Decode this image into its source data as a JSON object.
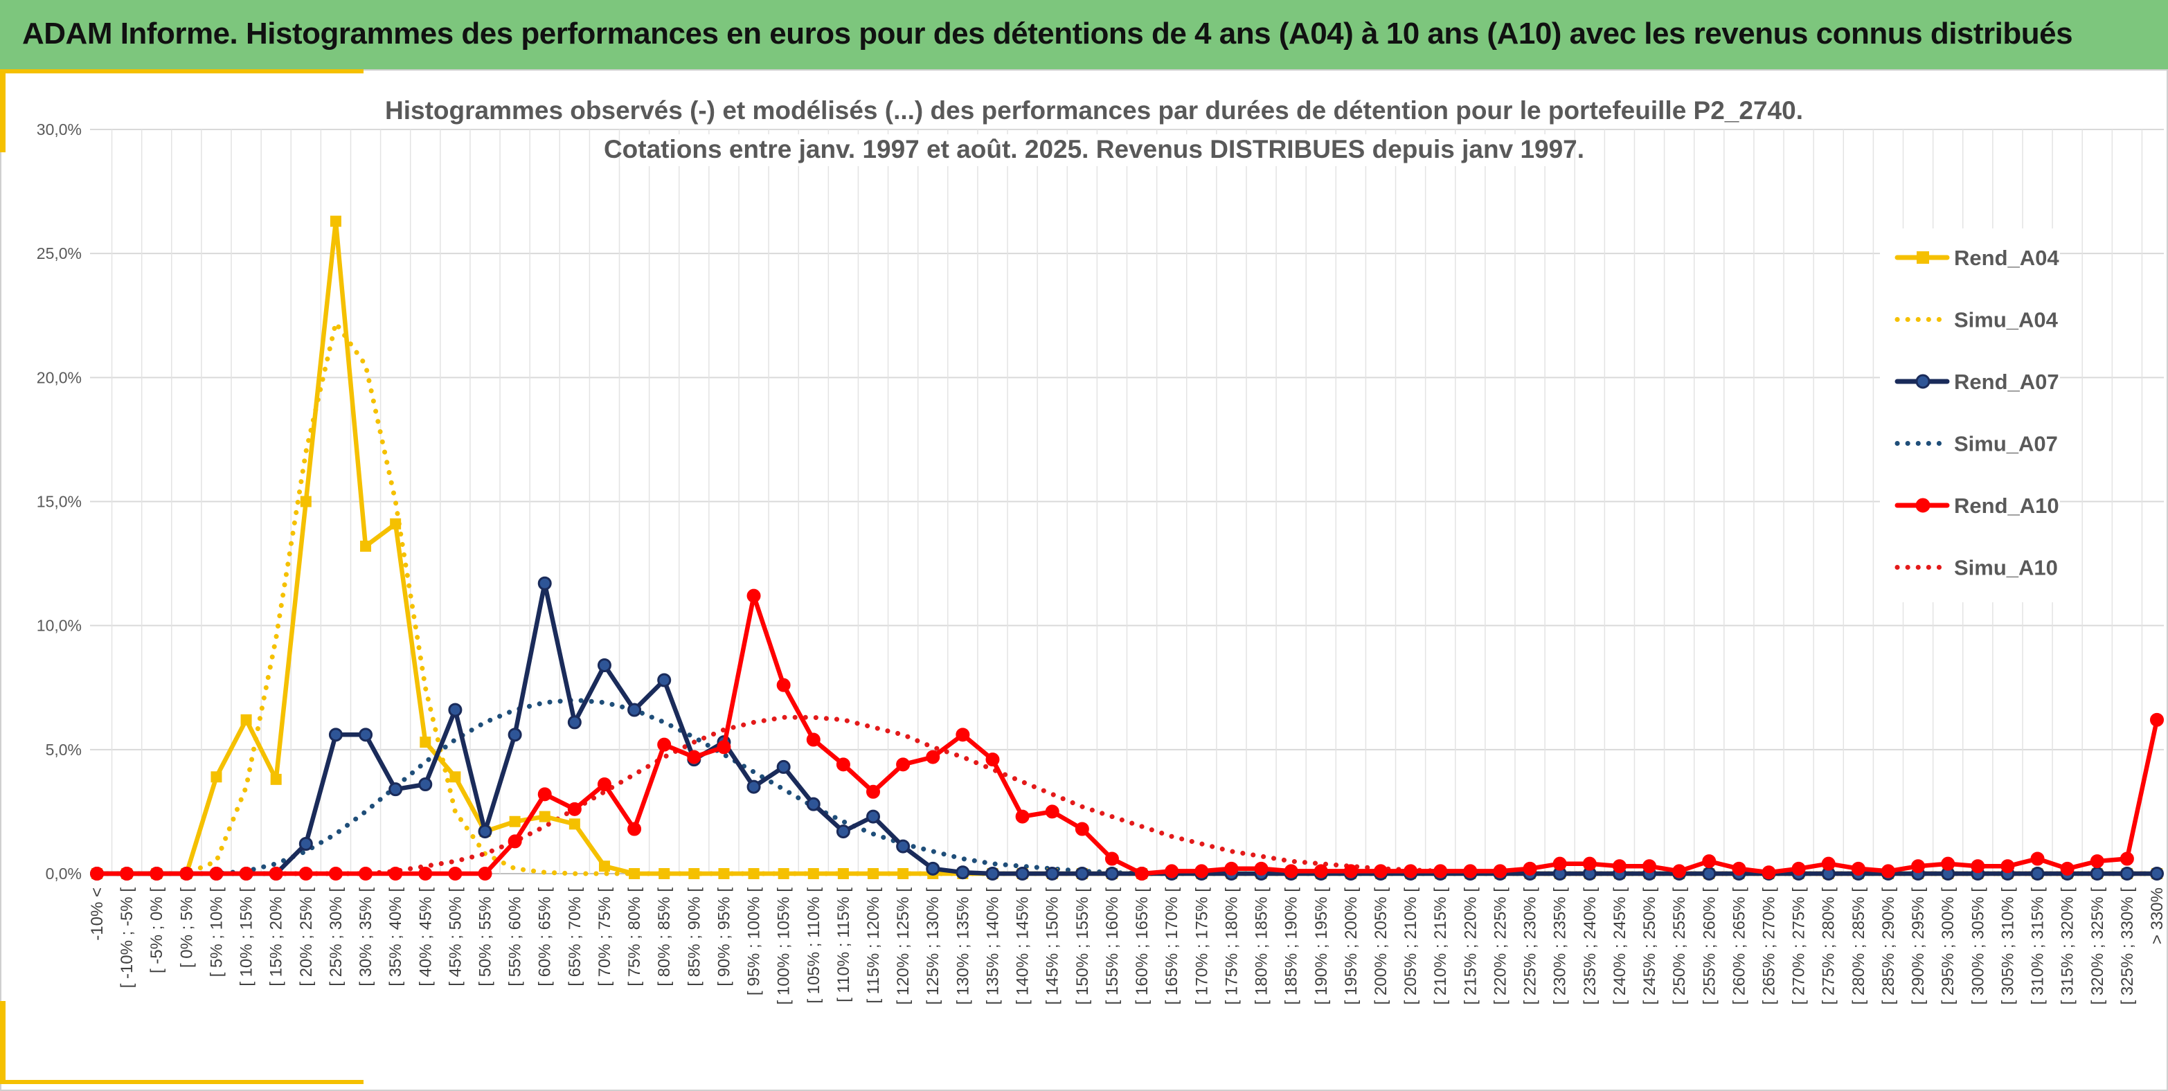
{
  "header": {
    "title": "ADAM Informe. Histogrammes des performances en euros pour des détentions de 4 ans (A04) à 10 ans (A10) avec les revenus connus distribués",
    "background": "#7dc67d"
  },
  "accent_color": "#f5c000",
  "chart_data": {
    "type": "line",
    "title": [
      "Histogrammes observés (-) et modélisés (...) des performances par durées de détention pour le portefeuille P2_2740.",
      "Cotations entre janv. 1997 et août. 2025. Revenus DISTRIBUES depuis janv 1997."
    ],
    "xlabel": "",
    "ylabel": "",
    "ylim": [
      0,
      30
    ],
    "y_ticks": [
      "0,0%",
      "5,0%",
      "10,0%",
      "15,0%",
      "20,0%",
      "25,0%",
      "30,0%"
    ],
    "grid": true,
    "legend_position": "right",
    "categories": [
      "-10% <",
      "[ -10% ; -5% [",
      "[ -5% ; 0% [",
      "[ 0% ; 5% [",
      "[ 5% ; 10% [",
      "[ 10% ; 15% [",
      "[ 15% ; 20% [",
      "[ 20% ; 25% [",
      "[ 25% ; 30% [",
      "[ 30% ; 35% [",
      "[ 35% ; 40% [",
      "[ 40% ; 45% [",
      "[ 45% ; 50% [",
      "[ 50% ; 55% [",
      "[ 55% ; 60% [",
      "[ 60% ; 65% [",
      "[ 65% ; 70% [",
      "[ 70% ; 75% [",
      "[ 75% ; 80% [",
      "[ 80% ; 85% [",
      "[ 85% ; 90% [",
      "[ 90% ; 95% [",
      "[ 95% ; 100% [",
      "[ 100% ; 105% [",
      "[ 105% ; 110% [",
      "[ 110% ; 115% [",
      "[ 115% ; 120% [",
      "[ 120% ; 125% [",
      "[ 125% ; 130% [",
      "[ 130% ; 135% [",
      "[ 135% ; 140% [",
      "[ 140% ; 145% [",
      "[ 145% ; 150% [",
      "[ 150% ; 155% [",
      "[ 155% ; 160% [",
      "[ 160% ; 165% [",
      "[ 165% ; 170% [",
      "[ 170% ; 175% [",
      "[ 175% ; 180% [",
      "[ 180% ; 185% [",
      "[ 185% ; 190% [",
      "[ 190% ; 195% [",
      "[ 195% ; 200% [",
      "[ 200% ; 205% [",
      "[ 205% ; 210% [",
      "[ 210% ; 215% [",
      "[ 215% ; 220% [",
      "[ 220% ; 225% [",
      "[ 225% ; 230% [",
      "[ 230% ; 235% [",
      "[ 235% ; 240% [",
      "[ 240% ; 245% [",
      "[ 245% ; 250% [",
      "[ 250% ; 255% [",
      "[ 255% ; 260% [",
      "[ 260% ; 265% [",
      "[ 265% ; 270% [",
      "[ 270% ; 275% [",
      "[ 275% ; 280% [",
      "[ 280% ; 285% [",
      "[ 285% ; 290% [",
      "[ 290% ; 295% [",
      "[ 295% ; 300% [",
      "[ 300% ; 305% [",
      "[ 305% ; 310% [",
      "[ 310% ; 315% [",
      "[ 315% ; 320% [",
      "[ 320% ; 325% [",
      "[ 325% ; 330% [",
      "> 330%"
    ],
    "series": [
      {
        "name": "Rend_A04",
        "color": "#f5c000",
        "style": "solid",
        "marker": "square",
        "values": [
          0,
          0,
          0,
          0,
          3.9,
          6.2,
          3.8,
          15,
          26.3,
          13.2,
          14.1,
          5.3,
          3.9,
          1.7,
          2.1,
          2.3,
          2,
          0.3,
          0,
          0,
          0,
          0,
          0,
          0,
          0,
          0,
          0,
          0,
          0,
          0,
          0,
          0,
          0,
          0,
          0,
          0,
          0,
          0,
          0,
          0,
          0,
          0,
          0,
          0,
          0,
          0,
          0,
          0,
          0,
          0,
          0,
          0,
          0,
          0,
          0,
          0,
          0,
          0,
          0,
          0,
          0,
          0,
          0,
          0,
          0,
          0,
          0,
          0,
          0,
          0
        ]
      },
      {
        "name": "Simu_A04",
        "color": "#f5c000",
        "style": "dotted",
        "marker": "none",
        "values": [
          0,
          0,
          0,
          0,
          0.5,
          3.5,
          9.5,
          17,
          22.2,
          20.5,
          15,
          7.5,
          2.5,
          0.8,
          0.2,
          0.05,
          0,
          0,
          0,
          0,
          0,
          0,
          0,
          0,
          0,
          0,
          0,
          0,
          0,
          0,
          0,
          0,
          0,
          0,
          0,
          0,
          0,
          0,
          0,
          0,
          0,
          0,
          0,
          0,
          0,
          0,
          0,
          0,
          0,
          0,
          0,
          0,
          0,
          0,
          0,
          0,
          0,
          0,
          0,
          0,
          0,
          0,
          0,
          0,
          0,
          0,
          0,
          0,
          0,
          0
        ]
      },
      {
        "name": "Rend_A07",
        "color": "#1a2b5a",
        "style": "solid",
        "marker": "circle",
        "values": [
          0,
          0,
          0,
          0,
          0,
          0,
          0,
          1.2,
          5.6,
          5.6,
          3.4,
          3.6,
          6.6,
          1.7,
          5.6,
          11.7,
          6.1,
          8.4,
          6.6,
          7.8,
          4.6,
          5.3,
          3.5,
          4.3,
          2.8,
          1.7,
          2.3,
          1.1,
          0.2,
          0.05,
          0,
          0,
          0,
          0,
          0,
          0,
          0,
          0,
          0,
          0,
          0,
          0,
          0,
          0,
          0,
          0,
          0,
          0,
          0,
          0,
          0,
          0,
          0,
          0,
          0,
          0,
          0,
          0,
          0,
          0,
          0,
          0,
          0,
          0,
          0,
          0,
          0,
          0,
          0,
          0
        ]
      },
      {
        "name": "Simu_A07",
        "color": "#1f4e79",
        "style": "dotted",
        "marker": "none",
        "values": [
          0,
          0,
          0,
          0,
          0,
          0.1,
          0.4,
          0.9,
          1.6,
          2.5,
          3.5,
          4.5,
          5.4,
          6.1,
          6.6,
          6.9,
          7,
          6.9,
          6.6,
          6.1,
          5.5,
          4.8,
          4.1,
          3.4,
          2.7,
          2.1,
          1.6,
          1.2,
          0.9,
          0.6,
          0.4,
          0.3,
          0.2,
          0.1,
          0.05,
          0,
          0,
          0,
          0,
          0,
          0,
          0,
          0,
          0,
          0,
          0,
          0,
          0,
          0,
          0,
          0,
          0,
          0,
          0,
          0,
          0,
          0,
          0,
          0,
          0,
          0,
          0,
          0,
          0,
          0,
          0,
          0,
          0,
          0,
          0
        ]
      },
      {
        "name": "Rend_A10",
        "color": "#ff0000",
        "style": "solid",
        "marker": "circle",
        "values": [
          0,
          0,
          0,
          0,
          0,
          0,
          0,
          0,
          0,
          0,
          0,
          0,
          0,
          0,
          1.3,
          3.2,
          2.6,
          3.6,
          1.8,
          5.2,
          4.7,
          5.1,
          11.2,
          7.6,
          5.4,
          4.4,
          3.3,
          4.4,
          4.7,
          5.6,
          4.6,
          2.3,
          2.5,
          1.8,
          0.6,
          0,
          0.1,
          0.1,
          0.2,
          0.2,
          0.1,
          0.1,
          0.1,
          0.1,
          0.1,
          0.1,
          0.1,
          0.1,
          0.2,
          0.4,
          0.4,
          0.3,
          0.3,
          0.1,
          0.5,
          0.2,
          0.05,
          0.2,
          0.4,
          0.2,
          0.1,
          0.3,
          0.4,
          0.3,
          0.3,
          0.6,
          0.2,
          0.5,
          0.6,
          6.2
        ]
      },
      {
        "name": "Simu_A10",
        "color": "#e31a1a",
        "style": "dotted",
        "marker": "none",
        "values": [
          0,
          0,
          0,
          0,
          0,
          0,
          0,
          0,
          0,
          0,
          0.1,
          0.3,
          0.5,
          0.8,
          1.3,
          1.9,
          2.6,
          3.3,
          4,
          4.7,
          5.3,
          5.8,
          6.1,
          6.3,
          6.3,
          6.2,
          5.9,
          5.6,
          5.1,
          4.7,
          4.2,
          3.7,
          3.2,
          2.7,
          2.3,
          1.9,
          1.5,
          1.2,
          0.9,
          0.7,
          0.5,
          0.4,
          0.3,
          0.2,
          0.15,
          0.1,
          0.05,
          0,
          0,
          0,
          0,
          0,
          0,
          0,
          0,
          0,
          0,
          0,
          0,
          0,
          0,
          0,
          0,
          0,
          0,
          0,
          0,
          0,
          0,
          0
        ]
      }
    ]
  }
}
